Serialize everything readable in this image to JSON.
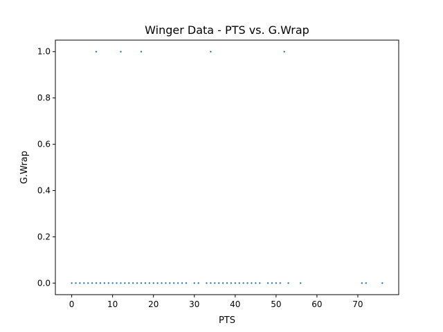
{
  "chart_data": {
    "type": "scatter",
    "title": "Winger Data - PTS vs. G.Wrap",
    "xlabel": "PTS",
    "ylabel": "G.Wrap",
    "xlim": [
      -4,
      80
    ],
    "ylim": [
      -0.05,
      1.05
    ],
    "xticks": [
      0,
      10,
      20,
      30,
      40,
      50,
      60,
      70
    ],
    "xtick_labels": [
      "0",
      "10",
      "20",
      "30",
      "40",
      "50",
      "60",
      "70"
    ],
    "yticks": [
      0.0,
      0.2,
      0.4,
      0.6,
      0.8,
      1.0
    ],
    "ytick_labels": [
      "0.0",
      "0.2",
      "0.4",
      "0.6",
      "0.8",
      "1.0"
    ],
    "grid": false,
    "marker_color": "#1f77b4",
    "series": [
      {
        "name": "G.Wrap",
        "points": [
          {
            "x": 6,
            "y": 1
          },
          {
            "x": 12,
            "y": 1
          },
          {
            "x": 17,
            "y": 1
          },
          {
            "x": 34,
            "y": 1
          },
          {
            "x": 52,
            "y": 1
          },
          {
            "x": 0,
            "y": 0
          },
          {
            "x": 1,
            "y": 0
          },
          {
            "x": 2,
            "y": 0
          },
          {
            "x": 3,
            "y": 0
          },
          {
            "x": 4,
            "y": 0
          },
          {
            "x": 5,
            "y": 0
          },
          {
            "x": 6,
            "y": 0
          },
          {
            "x": 7,
            "y": 0
          },
          {
            "x": 8,
            "y": 0
          },
          {
            "x": 9,
            "y": 0
          },
          {
            "x": 10,
            "y": 0
          },
          {
            "x": 11,
            "y": 0
          },
          {
            "x": 12,
            "y": 0
          },
          {
            "x": 13,
            "y": 0
          },
          {
            "x": 14,
            "y": 0
          },
          {
            "x": 15,
            "y": 0
          },
          {
            "x": 16,
            "y": 0
          },
          {
            "x": 17,
            "y": 0
          },
          {
            "x": 18,
            "y": 0
          },
          {
            "x": 19,
            "y": 0
          },
          {
            "x": 20,
            "y": 0
          },
          {
            "x": 21,
            "y": 0
          },
          {
            "x": 22,
            "y": 0
          },
          {
            "x": 23,
            "y": 0
          },
          {
            "x": 24,
            "y": 0
          },
          {
            "x": 25,
            "y": 0
          },
          {
            "x": 26,
            "y": 0
          },
          {
            "x": 27,
            "y": 0
          },
          {
            "x": 28,
            "y": 0
          },
          {
            "x": 30,
            "y": 0
          },
          {
            "x": 31,
            "y": 0
          },
          {
            "x": 33,
            "y": 0
          },
          {
            "x": 34,
            "y": 0
          },
          {
            "x": 35,
            "y": 0
          },
          {
            "x": 36,
            "y": 0
          },
          {
            "x": 37,
            "y": 0
          },
          {
            "x": 38,
            "y": 0
          },
          {
            "x": 39,
            "y": 0
          },
          {
            "x": 40,
            "y": 0
          },
          {
            "x": 41,
            "y": 0
          },
          {
            "x": 42,
            "y": 0
          },
          {
            "x": 43,
            "y": 0
          },
          {
            "x": 44,
            "y": 0
          },
          {
            "x": 45,
            "y": 0
          },
          {
            "x": 46,
            "y": 0
          },
          {
            "x": 48,
            "y": 0
          },
          {
            "x": 49,
            "y": 0
          },
          {
            "x": 50,
            "y": 0
          },
          {
            "x": 51,
            "y": 0
          },
          {
            "x": 53,
            "y": 0
          },
          {
            "x": 56,
            "y": 0
          },
          {
            "x": 71,
            "y": 0
          },
          {
            "x": 72,
            "y": 0
          },
          {
            "x": 76,
            "y": 0
          }
        ]
      }
    ]
  }
}
